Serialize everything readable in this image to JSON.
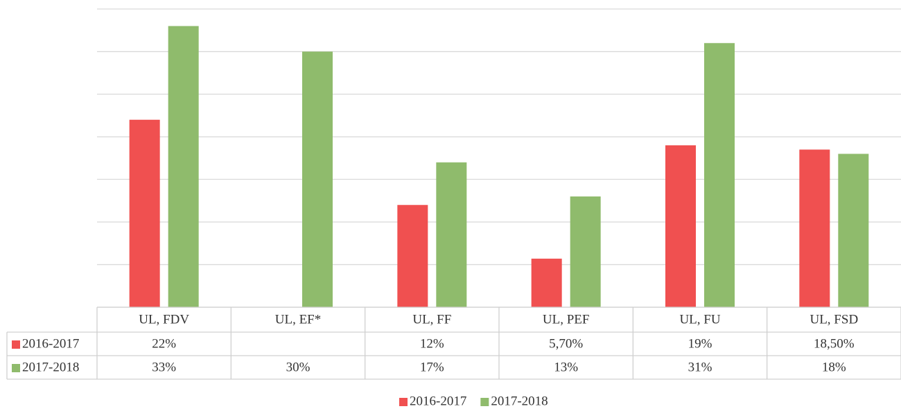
{
  "chart_data": {
    "type": "bar",
    "categories": [
      "UL, FDV",
      "UL, EF*",
      "UL, FF",
      "UL, PEF",
      "UL, FU",
      "UL, FSD"
    ],
    "series": [
      {
        "name": "2016-2017",
        "color": "#f05050",
        "values": [
          22,
          null,
          12,
          5.7,
          19,
          18.5
        ],
        "value_labels": [
          "22%",
          null,
          "12%",
          "5,70%",
          "19%",
          "18,50%"
        ]
      },
      {
        "name": "2017-2018",
        "color": "#8fbb6c",
        "values": [
          33,
          30,
          17,
          13,
          31,
          18
        ],
        "value_labels": [
          "33%",
          "30%",
          "17%",
          "13%",
          "31%",
          "18%"
        ]
      }
    ],
    "ylim": [
      0,
      35
    ],
    "yticks": [
      0,
      5,
      10,
      15,
      20,
      25,
      30,
      35
    ],
    "grid": true,
    "legend": "bottom"
  }
}
